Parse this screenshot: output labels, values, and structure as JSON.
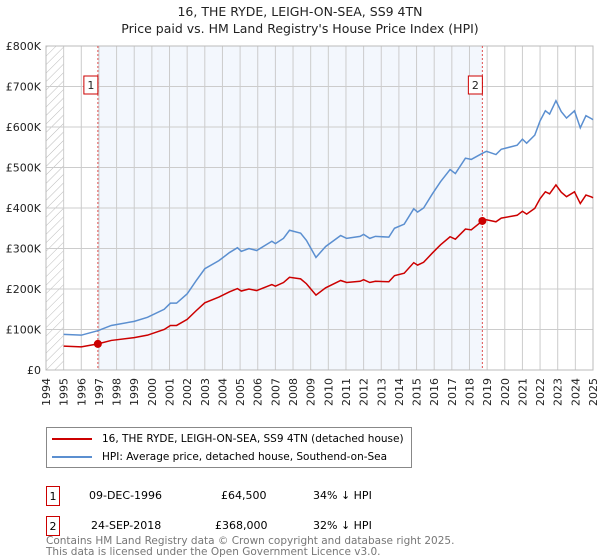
{
  "chart_data": {
    "type": "line",
    "title": "16, THE RYDE, LEIGH-ON-SEA, SS9 4TN",
    "subtitle": "Price paid vs. HM Land Registry's House Price Index (HPI)",
    "xlim": [
      1994,
      2025
    ],
    "ylim": [
      0,
      800000
    ],
    "x_ticks": [
      "1994",
      "1995",
      "1996",
      "1997",
      "1998",
      "1999",
      "2000",
      "2001",
      "2002",
      "2003",
      "2004",
      "2005",
      "2006",
      "2007",
      "2008",
      "2009",
      "2010",
      "2011",
      "2012",
      "2013",
      "2014",
      "2015",
      "2016",
      "2017",
      "2018",
      "2019",
      "2020",
      "2021",
      "2022",
      "2023",
      "2024",
      "2025"
    ],
    "y_ticks": [
      "£0",
      "£100K",
      "£200K",
      "£300K",
      "£400K",
      "£500K",
      "£600K",
      "£700K",
      "£800K"
    ],
    "grid": true,
    "x": [
      1995.0,
      1996.0,
      1996.94,
      1997.7,
      1999.0,
      1999.75,
      2000.7,
      2001.05,
      2001.4,
      2002.0,
      2002.5,
      2003.0,
      2003.8,
      2004.4,
      2004.85,
      2005.07,
      2005.5,
      2005.94,
      2006.8,
      2007.0,
      2007.46,
      2007.8,
      2008.43,
      2008.76,
      2009.3,
      2009.85,
      2010.7,
      2011.04,
      2011.8,
      2012.0,
      2012.35,
      2012.67,
      2013.43,
      2013.75,
      2014.3,
      2014.84,
      2015.06,
      2015.4,
      2015.9,
      2016.36,
      2016.9,
      2017.2,
      2017.77,
      2018.1,
      2018.73,
      2018.96,
      2019.5,
      2019.8,
      2020.7,
      2021.0,
      2021.24,
      2021.7,
      2022.0,
      2022.3,
      2022.54,
      2022.9,
      2023.2,
      2023.5,
      2023.95,
      2024.28,
      2024.6,
      2024.93,
      2025.0
    ],
    "series": [
      {
        "name": "16, THE RYDE, LEIGH-ON-SEA, SS9 4TN (detached house)",
        "color": "#cc0000",
        "values": [
          59,
          57,
          64.5,
          73,
          80,
          86,
          100,
          110,
          110,
          125,
          146,
          166,
          180,
          193,
          201,
          195,
          200,
          196,
          211,
          207,
          216,
          229,
          225,
          213,
          185,
          203,
          221,
          216,
          219,
          223,
          216,
          219,
          218,
          233,
          239,
          265,
          259,
          266,
          289,
          309,
          329,
          323,
          348,
          346,
          368,
          371,
          366,
          375,
          382,
          392,
          385,
          399,
          423,
          440,
          435,
          457,
          439,
          428,
          440,
          411,
          432,
          427,
          425
        ]
      },
      {
        "name": "HPI: Average price, detached house, Southend-on-Sea",
        "color": "#5b8fd0",
        "values": [
          88,
          86,
          97,
          110,
          120,
          130,
          150,
          165,
          165,
          188,
          220,
          250,
          270,
          290,
          302,
          293,
          300,
          295,
          318,
          312,
          325,
          345,
          338,
          320,
          278,
          305,
          332,
          325,
          330,
          335,
          325,
          330,
          328,
          350,
          360,
          398,
          390,
          400,
          435,
          465,
          495,
          485,
          523,
          520,
          535,
          540,
          532,
          545,
          555,
          570,
          560,
          580,
          615,
          640,
          632,
          665,
          638,
          622,
          640,
          598,
          628,
          620,
          618
        ]
      }
    ],
    "value_unit": "thousand GBP",
    "sales": [
      {
        "label": "1",
        "x": 1996.94,
        "value": 64.5,
        "date": "09-DEC-1996",
        "price": "£64,500",
        "hpi": "34% ↓ HPI"
      },
      {
        "label": "2",
        "x": 2018.73,
        "value": 368,
        "date": "24-SEP-2018",
        "price": "£368,000",
        "hpi": "32% ↓ HPI"
      }
    ],
    "legend_placement": "below"
  },
  "footer": {
    "line1": "Contains HM Land Registry data © Crown copyright and database right 2025.",
    "line2": "This data is licensed under the Open Government Licence v3.0."
  }
}
